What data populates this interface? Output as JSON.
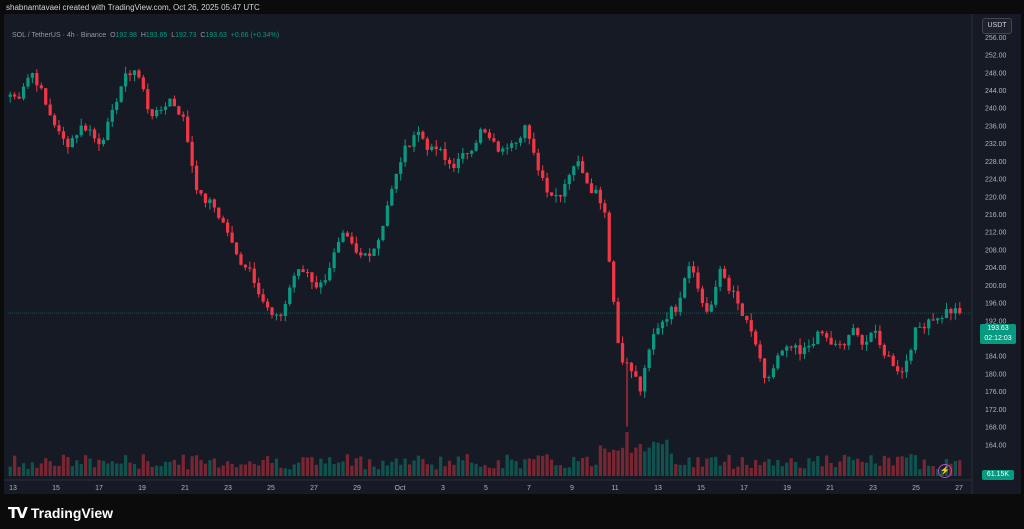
{
  "header": {
    "meta": "shabnamtavaei created with TradingView.com, Oct 26, 2025 05:47 UTC"
  },
  "currency_button": "USDT",
  "legend": {
    "symbol": "SOL / TetherUS · 4h · Binance",
    "open_label": "O",
    "open": "192.98",
    "high_label": "H",
    "high": "193.65",
    "low_label": "L",
    "low": "192.73",
    "close_label": "C",
    "close": "193.63",
    "change": "+0.66 (+0.34%)"
  },
  "price_tag": {
    "price": "193.63",
    "countdown": "02:12:03"
  },
  "volume_tag": "61.15K",
  "brand": {
    "name": "TradingView"
  },
  "colors": {
    "up": "#089981",
    "down": "#f23645",
    "background": "#161a25",
    "current_price_line": "#089981"
  },
  "icons": {
    "alert": "lightning-bolt-icon",
    "logo": "tradingview-logo-icon"
  },
  "chart_data": {
    "type": "candlestick",
    "timeframe": "4h",
    "y_range": [
      160,
      258
    ],
    "y_ticks": [
      "256.00",
      "252.00",
      "248.00",
      "244.00",
      "240.00",
      "236.00",
      "232.00",
      "228.00",
      "224.00",
      "220.00",
      "216.00",
      "212.00",
      "208.00",
      "204.00",
      "200.00",
      "196.00",
      "192.00",
      "188.00",
      "184.00",
      "180.00",
      "176.00",
      "172.00",
      "168.00",
      "164.00"
    ],
    "x_ticks": [
      "13",
      "15",
      "17",
      "19",
      "21",
      "23",
      "25",
      "27",
      "29",
      "Oct",
      "3",
      "5",
      "7",
      "9",
      "11",
      "13",
      "15",
      "17",
      "19",
      "21",
      "23",
      "25",
      "27"
    ],
    "close_path": [
      243,
      242,
      246,
      248,
      245,
      240,
      237,
      233,
      232,
      234,
      236,
      235,
      232,
      234,
      238,
      244,
      247,
      249,
      246,
      240,
      238,
      240,
      242,
      240,
      237,
      228,
      220,
      219,
      218,
      215,
      212,
      207,
      205,
      204,
      200,
      196,
      193,
      192,
      196,
      202,
      203,
      203,
      200,
      200,
      204,
      208,
      211,
      209,
      206,
      207,
      208,
      211,
      218,
      223,
      229,
      232,
      235,
      233,
      230,
      231,
      228,
      227,
      228,
      230,
      232,
      235,
      233,
      231,
      230,
      233,
      233,
      236,
      230,
      226,
      222,
      220,
      221,
      225,
      228,
      226,
      222,
      221,
      217,
      200,
      185,
      182,
      180,
      176,
      184,
      190,
      192,
      194,
      195,
      202,
      206,
      198,
      194,
      196,
      204,
      200,
      197,
      193,
      190,
      186,
      178,
      180,
      184,
      185,
      186,
      184,
      186,
      188,
      189,
      187,
      186,
      186,
      190,
      188,
      187,
      190,
      186,
      184,
      182,
      180,
      185,
      190,
      191,
      193,
      192,
      194,
      194,
      193.63
    ],
    "volume_profile": "relative volume per candle; spike near Oct 10 crash"
  }
}
